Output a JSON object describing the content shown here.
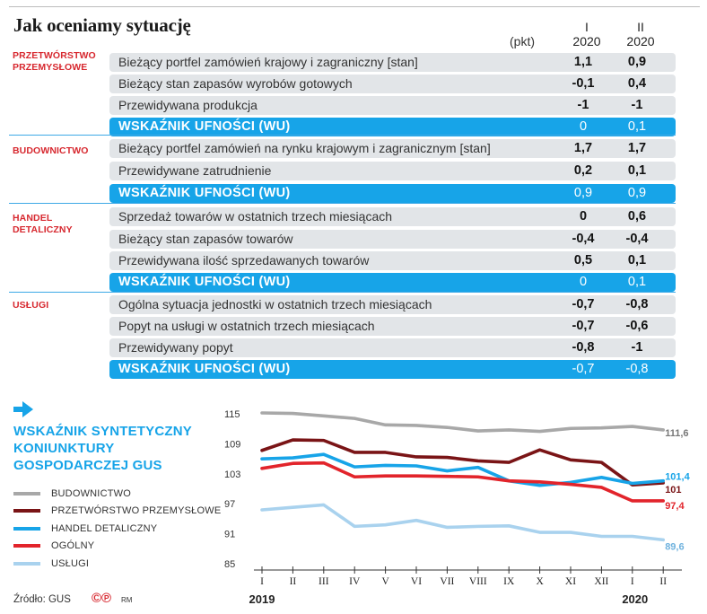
{
  "title": "Jak oceniamy sytuację",
  "columns": {
    "unit": "(pkt)",
    "col1": [
      "I",
      "2020"
    ],
    "col2": [
      "II",
      "2020"
    ]
  },
  "sections": [
    {
      "label": [
        "PRZETWÓRSTWO",
        "PRZEMYSŁOWE"
      ],
      "rows": [
        {
          "label": "Bieżący portfel zamówień krajowy i zagraniczny [stan]",
          "v1": "1,1",
          "v2": "0,9"
        },
        {
          "label": "Bieżący stan zapasów wyrobów gotowych",
          "v1": "-0,1",
          "v2": "0,4"
        },
        {
          "label": "Przewidywana produkcja",
          "v1": "-1",
          "v2": "-1"
        },
        {
          "label": "WSKAŹNIK UFNOŚCI (WU)",
          "v1": "0",
          "v2": "0,1",
          "wu": true
        }
      ]
    },
    {
      "label": [
        "BUDOWNICTWO"
      ],
      "rows": [
        {
          "label": "Bieżący portfel zamówień na rynku krajowym i zagranicznym [stan]",
          "v1": "1,7",
          "v2": "1,7"
        },
        {
          "label": "Przewidywane zatrudnienie",
          "v1": "0,2",
          "v2": "0,1"
        },
        {
          "label": "WSKAŹNIK UFNOŚCI (WU)",
          "v1": "0,9",
          "v2": "0,9",
          "wu": true
        }
      ]
    },
    {
      "label": [
        "HANDEL",
        "DETALICZNY"
      ],
      "rows": [
        {
          "label": "Sprzedaż towarów w ostatnich trzech miesiącach",
          "v1": "0",
          "v2": "0,6"
        },
        {
          "label": "Bieżący stan zapasów towarów",
          "v1": "-0,4",
          "v2": "-0,4"
        },
        {
          "label": "Przewidywana ilość sprzedawanych towarów",
          "v1": "0,5",
          "v2": "0,1"
        },
        {
          "label": "WSKAŹNIK UFNOŚCI (WU)",
          "v1": "0",
          "v2": "0,1",
          "wu": true
        }
      ]
    },
    {
      "label": [
        "USŁUGI"
      ],
      "rows": [
        {
          "label": "Ogólna sytuacja jednostki w ostatnich trzech miesiącach",
          "v1": "-0,7",
          "v2": "-0,8"
        },
        {
          "label": "Popyt na usługi w ostatnich trzech miesiącach",
          "v1": "-0,7",
          "v2": "-0,6"
        },
        {
          "label": "Przewidywany popyt",
          "v1": "-0,8",
          "v2": "-1"
        },
        {
          "label": "WSKAŹNIK UFNOŚCI (WU)",
          "v1": "-0,7",
          "v2": "-0,8",
          "wu": true
        }
      ]
    }
  ],
  "chart_data": {
    "type": "line",
    "title": [
      "WSKAŹNIK SYNTETYCZNY",
      "KONIUNKTURY",
      "GOSPODARCZEJ GUS"
    ],
    "x": [
      "I",
      "II",
      "III",
      "IV",
      "V",
      "VI",
      "VII",
      "VIII",
      "IX",
      "X",
      "XI",
      "XII",
      "I",
      "II"
    ],
    "year_labels": [
      {
        "label": "2019",
        "at": 0
      },
      {
        "label": "2020",
        "at": 12
      }
    ],
    "ylim": [
      85,
      115
    ],
    "yticks": [
      85,
      91,
      97,
      103,
      109,
      115
    ],
    "grid": false,
    "legend_placement": "left",
    "series": [
      {
        "name": "BUDOWNICTWO",
        "color": "#a8a8a8",
        "end_label": "111,6",
        "values": [
          115,
          114.9,
          114.4,
          113.9,
          112.6,
          112.5,
          112.1,
          111.4,
          111.6,
          111.3,
          111.9,
          112,
          112.3,
          111.6
        ]
      },
      {
        "name": "PRZETWÓRSTWO PRZEMYSŁOWE",
        "color": "#7a1416",
        "end_label": "101",
        "values": [
          107.5,
          109.6,
          109.5,
          107.1,
          107.1,
          106.2,
          106.1,
          105.4,
          105.1,
          107.6,
          105.6,
          105.1,
          100.6,
          101
        ]
      },
      {
        "name": "HANDEL DETALICZNY",
        "color": "#17a4e8",
        "end_label": "101,4",
        "values": [
          105.8,
          106,
          106.7,
          104.2,
          104.5,
          104.4,
          103.4,
          104.1,
          101.4,
          100.5,
          101.1,
          102.1,
          100.9,
          101.4
        ]
      },
      {
        "name": "OGÓLNY",
        "color": "#e2242b",
        "end_label": "97,4",
        "values": [
          103.9,
          104.9,
          105,
          102.2,
          102.4,
          102.4,
          102.3,
          102.2,
          101.4,
          101.2,
          100.7,
          100.1,
          97.4,
          97.4
        ]
      },
      {
        "name": "USŁUGI",
        "color": "#a9d2ee",
        "end_label": "89,6",
        "values": [
          95.6,
          96.1,
          96.6,
          92.3,
          92.6,
          93.5,
          92.1,
          92.3,
          92.4,
          91.1,
          91.1,
          90.3,
          90.3,
          89.6
        ]
      }
    ]
  },
  "source": "Źródło: GUS",
  "credit": "RM",
  "logo_glyphs": "©℗"
}
